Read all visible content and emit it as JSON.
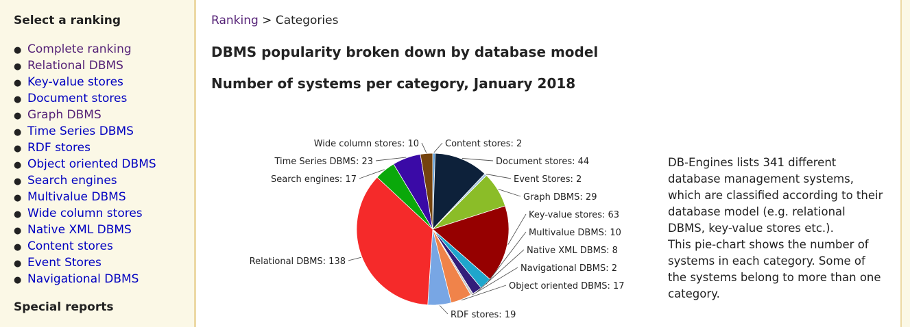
{
  "sidebar": {
    "heading": "Select a ranking",
    "items": [
      {
        "label": "Complete ranking",
        "visited": true
      },
      {
        "label": "Relational DBMS",
        "visited": true
      },
      {
        "label": "Key-value stores",
        "visited": false
      },
      {
        "label": "Document stores",
        "visited": false
      },
      {
        "label": "Graph DBMS",
        "visited": true
      },
      {
        "label": "Time Series DBMS",
        "visited": false
      },
      {
        "label": "RDF stores",
        "visited": false
      },
      {
        "label": "Object oriented DBMS",
        "visited": false
      },
      {
        "label": "Search engines",
        "visited": false
      },
      {
        "label": "Multivalue DBMS",
        "visited": false
      },
      {
        "label": "Wide column stores",
        "visited": false
      },
      {
        "label": "Native XML DBMS",
        "visited": false
      },
      {
        "label": "Content stores",
        "visited": false
      },
      {
        "label": "Event Stores",
        "visited": false
      },
      {
        "label": "Navigational DBMS",
        "visited": false
      }
    ],
    "special_heading": "Special reports"
  },
  "breadcrumb": {
    "link": "Ranking",
    "separator": " > ",
    "current": "Categories"
  },
  "page_title": "DBMS popularity broken down by database model",
  "chart_title": "Number of systems per category, January 2018",
  "description": [
    "DB-Engines lists 341 different",
    "database management systems,",
    "which are classified according to their",
    "database model (e.g. relational",
    "DBMS, key-value stores etc.).",
    "This pie-chart shows the number of",
    "systems in each category. Some of",
    "the systems belong to more than one",
    "category."
  ],
  "chart_data": {
    "type": "pie",
    "title": "Number of systems per category, January 2018",
    "start_angle_deg": 0,
    "direction": "clockwise",
    "categories": [
      "Content stores",
      "Document stores",
      "Event Stores",
      "Graph DBMS",
      "Key-value stores",
      "Multivalue DBMS",
      "Native XML DBMS",
      "Navigational DBMS",
      "Object oriented DBMS",
      "RDF stores",
      "Relational DBMS",
      "Search engines",
      "Time Series DBMS",
      "Wide column stores"
    ],
    "values": [
      2,
      44,
      2,
      29,
      63,
      10,
      8,
      2,
      17,
      19,
      138,
      17,
      23,
      10
    ],
    "colors": [
      "#5b9bd5",
      "#0d213a",
      "#a8c8e4",
      "#8bbd28",
      "#960000",
      "#1fa6cc",
      "#331d7a",
      "#c8c8c8",
      "#f0834a",
      "#78a6e4",
      "#f52a2a",
      "#0aa80a",
      "#3a0aa6",
      "#74430e"
    ],
    "data_labels": [
      "Content stores: 2",
      "Document stores: 44",
      "Event Stores: 2",
      "Graph DBMS: 29",
      "Key-value stores: 63",
      "Multivalue DBMS: 10",
      "Native XML DBMS: 8",
      "Navigational DBMS: 2",
      "Object oriented DBMS: 17",
      "RDF stores: 19",
      "Relational DBMS: 138",
      "Search engines: 17",
      "Time Series DBMS: 23",
      "Wide column stores: 10"
    ],
    "legend": "none"
  }
}
